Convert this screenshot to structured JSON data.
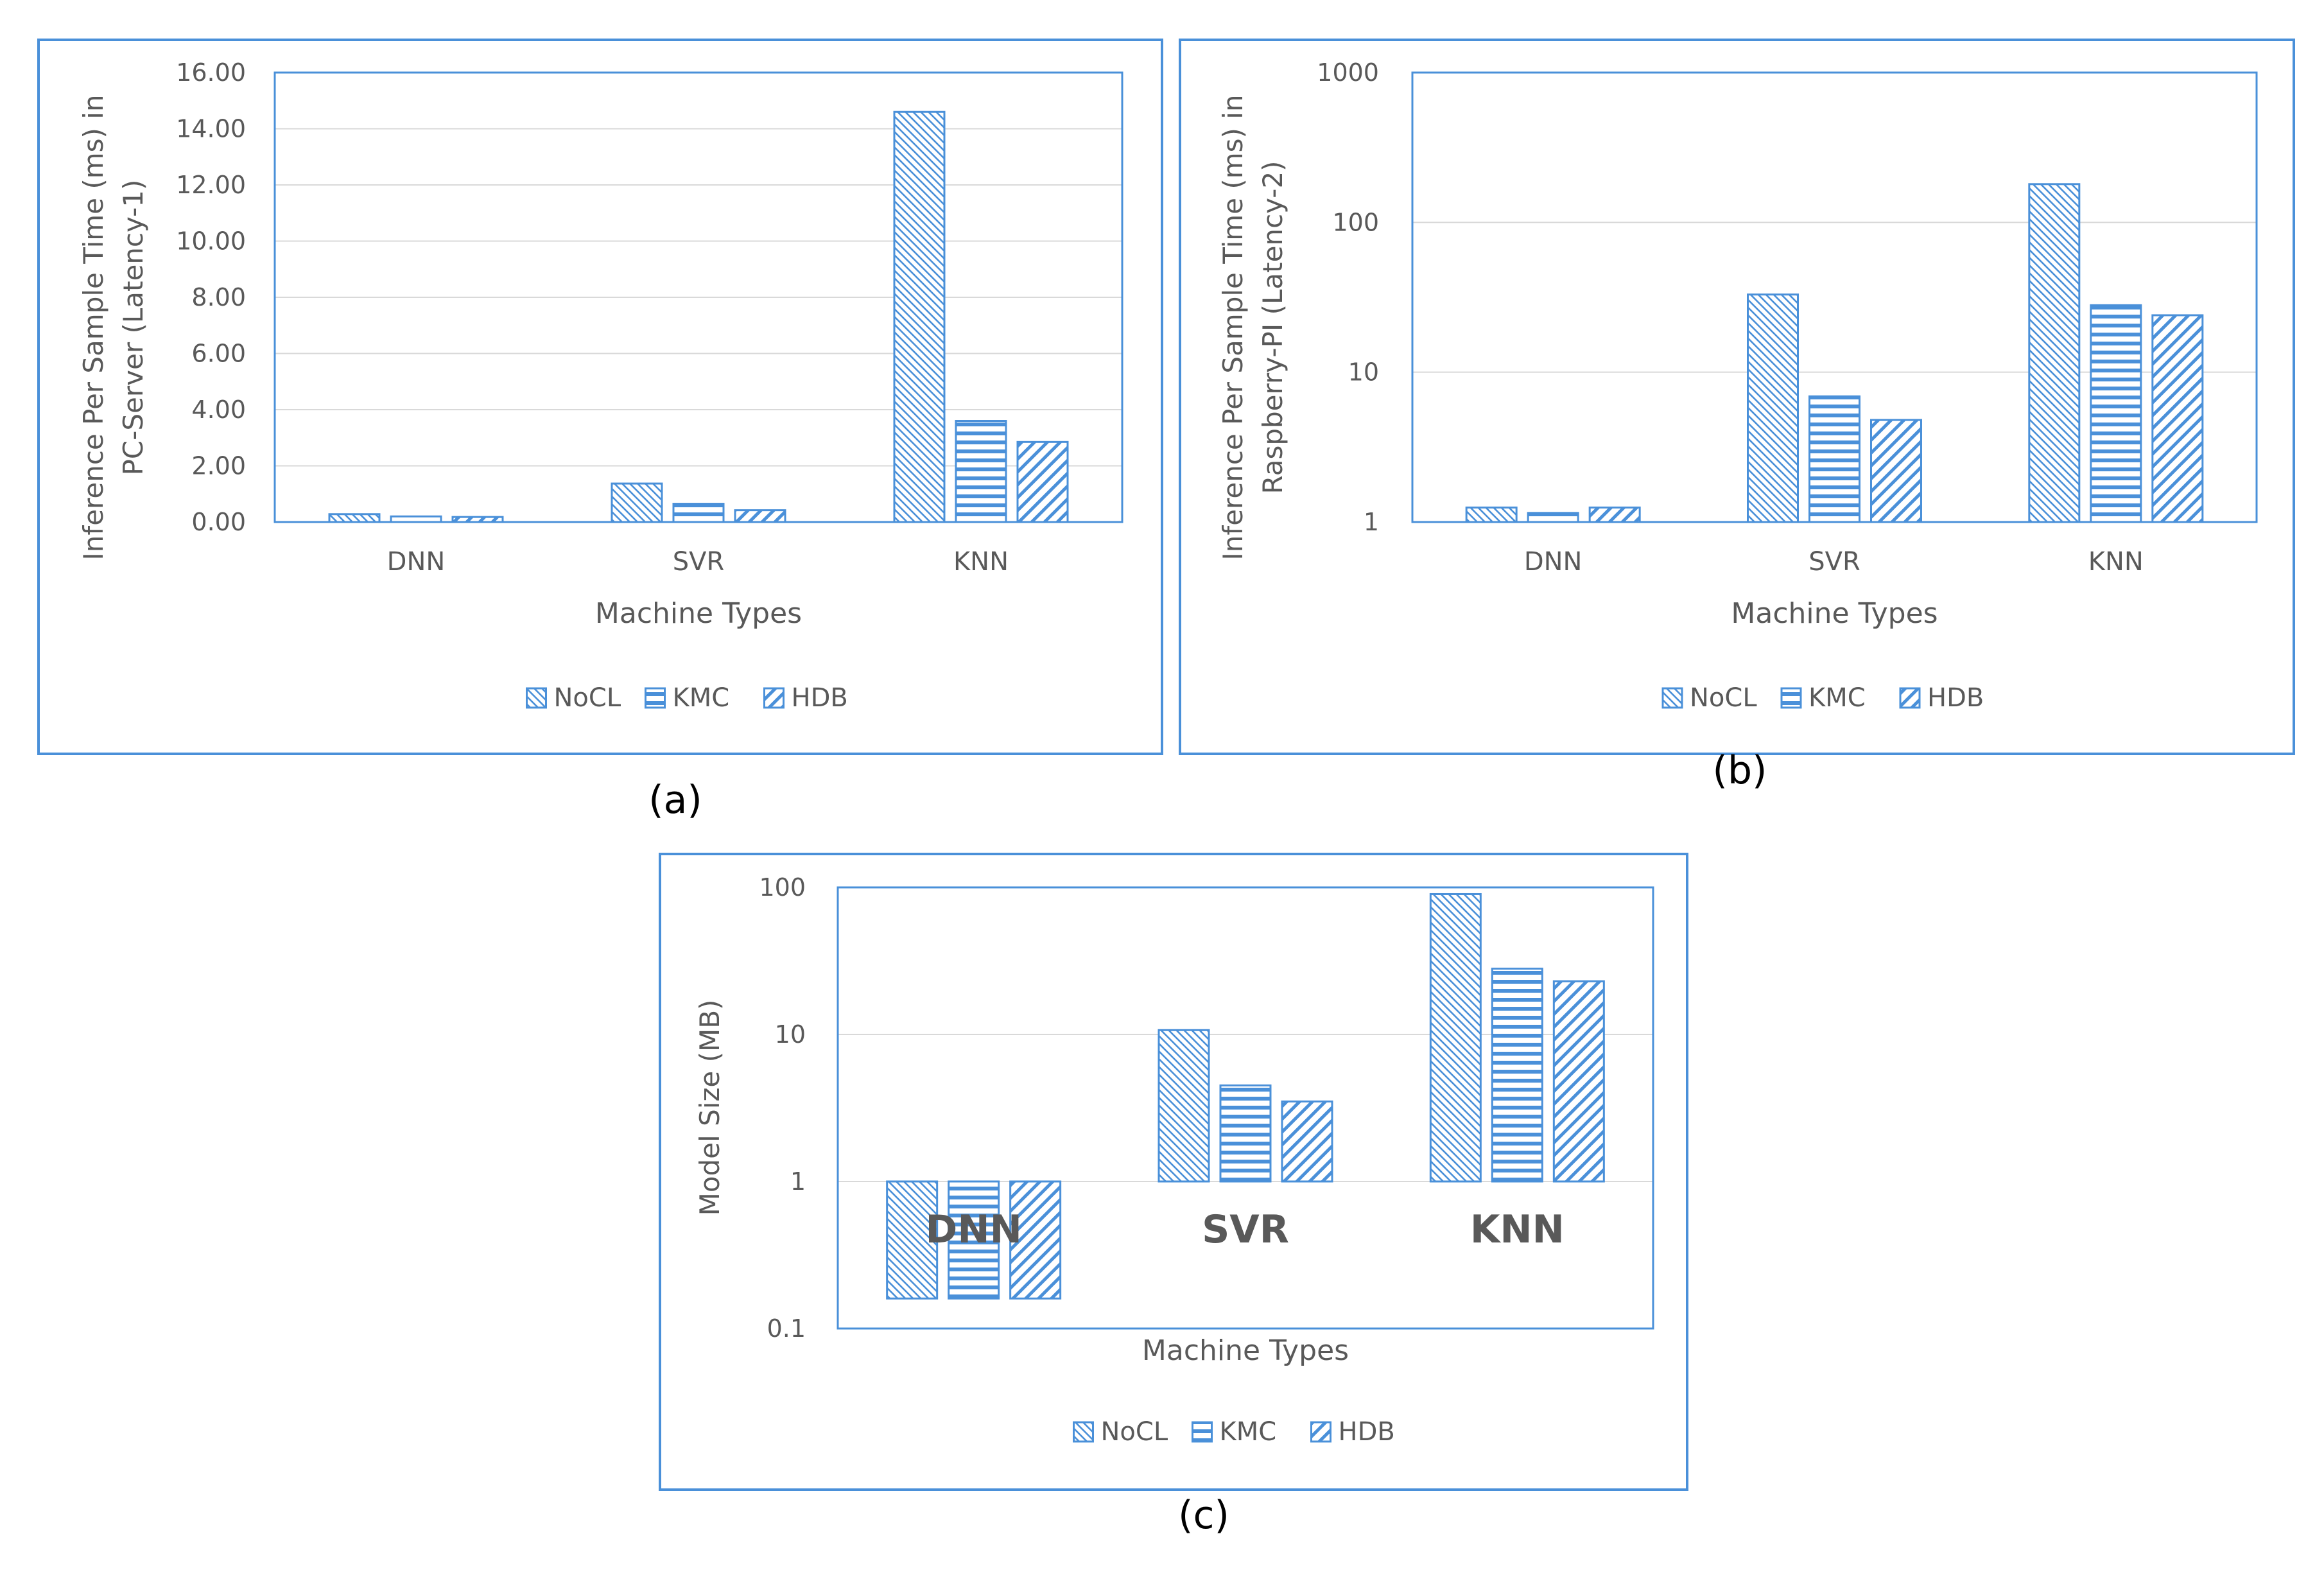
{
  "colors": {
    "series": "#4a90d9",
    "frame": "#4a90d9",
    "grid": "#d9d9d9",
    "axis_text": "#595959",
    "caption": "#000000"
  },
  "legend_swatch_icons": [
    "diagonal-down-hatch-icon",
    "horizontal-stripe-icon",
    "diagonal-up-hatch-icon"
  ],
  "chart_data": [
    {
      "id": "a",
      "caption": "(a)",
      "type": "bar",
      "scale": "linear",
      "title": "",
      "ylabel_lines": [
        "Inference Per Sample Time (ms) in",
        "PC-Server (Latency-1)"
      ],
      "xlabel": "Machine Types",
      "categories": [
        "DNN",
        "SVR",
        "KNN"
      ],
      "series": [
        {
          "name": "NoCL",
          "pattern": "diag-down",
          "values": [
            0.28,
            1.37,
            14.6
          ]
        },
        {
          "name": "KMC",
          "pattern": "horizontal",
          "values": [
            0.2,
            0.65,
            3.6
          ]
        },
        {
          "name": "HDB",
          "pattern": "diag-up",
          "values": [
            0.18,
            0.42,
            2.85
          ]
        }
      ],
      "ylim": [
        0,
        16
      ],
      "yticks": [
        0,
        2,
        4,
        6,
        8,
        10,
        12,
        14,
        16
      ],
      "ytick_labels": [
        "0.00",
        "2.00",
        "4.00",
        "6.00",
        "8.00",
        "10.00",
        "12.00",
        "14.00",
        "16.00"
      ],
      "grid": true,
      "legend": "bottom-center",
      "category_labels_inside": false
    },
    {
      "id": "b",
      "caption": "(b)",
      "type": "bar",
      "scale": "log",
      "title": "",
      "ylabel_lines": [
        "Inference Per Sample Time (ms) in",
        "Raspberry-PI (Latency-2)"
      ],
      "xlabel": "Machine Types",
      "categories": [
        "DNN",
        "SVR",
        "KNN"
      ],
      "series": [
        {
          "name": "NoCL",
          "pattern": "diag-down",
          "values": [
            1.25,
            33,
            180
          ]
        },
        {
          "name": "KMC",
          "pattern": "horizontal",
          "values": [
            1.15,
            6.9,
            28
          ]
        },
        {
          "name": "HDB",
          "pattern": "diag-up",
          "values": [
            1.25,
            4.8,
            24
          ]
        }
      ],
      "ylim": [
        1,
        1000
      ],
      "yticks": [
        1,
        10,
        100,
        1000
      ],
      "ytick_labels": [
        "1",
        "10",
        "100",
        "1000"
      ],
      "grid": true,
      "legend": "bottom-center",
      "category_labels_inside": false
    },
    {
      "id": "c",
      "caption": "(c)",
      "type": "bar",
      "scale": "log",
      "title": "",
      "ylabel_lines": [
        "Model Size (MB)"
      ],
      "xlabel": "Machine Types",
      "categories": [
        "DNN",
        "SVR",
        "KNN"
      ],
      "series": [
        {
          "name": "NoCL",
          "pattern": "diag-down",
          "values": [
            0.16,
            10.7,
            90
          ]
        },
        {
          "name": "KMC",
          "pattern": "horizontal",
          "values": [
            0.16,
            4.5,
            28
          ]
        },
        {
          "name": "HDB",
          "pattern": "diag-up",
          "values": [
            0.16,
            3.5,
            23
          ]
        }
      ],
      "ylim": [
        0.1,
        100
      ],
      "yticks": [
        0.1,
        1,
        10,
        100
      ],
      "ytick_labels": [
        "0.1",
        "1",
        "10",
        "100"
      ],
      "grid": true,
      "legend": "bottom-center",
      "baseline_value": 1,
      "category_labels_inside": true
    }
  ]
}
